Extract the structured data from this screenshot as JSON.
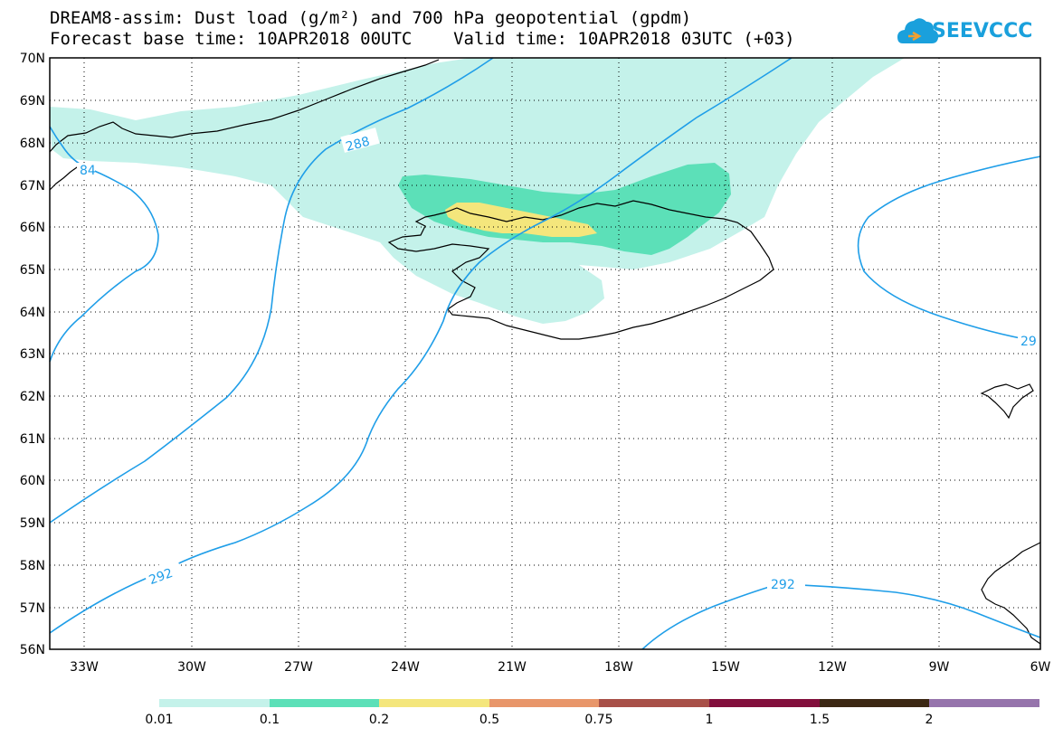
{
  "title": {
    "line1": "DREAM8-assim: Dust load (g/m²) and 700 hPa geopotential (gpdm)",
    "line2": "Forecast base time: 10APR2018 00UTC    Valid time: 10APR2018 03UTC (+03)"
  },
  "logo": {
    "text": "SEEVCCC",
    "icon": "cloud-logo-icon",
    "color": "#1aa0dc"
  },
  "map": {
    "lat_labels": [
      "70N",
      "69N",
      "68N",
      "67N",
      "66N",
      "65N",
      "64N",
      "63N",
      "62N",
      "61N",
      "60N",
      "59N",
      "58N",
      "57N",
      "56N"
    ],
    "lon_labels": [
      "33W",
      "30W",
      "27W",
      "24W",
      "21W",
      "18W",
      "15W",
      "12W",
      "9W",
      "6W"
    ],
    "contour_labels": [
      "84",
      "288",
      "292",
      "292",
      "29"
    ],
    "contour_color": "#1f9ee8",
    "coast_color": "#000000"
  },
  "colorbar": {
    "labels": [
      "0.01",
      "0.1",
      "0.2",
      "0.5",
      "0.75",
      "1",
      "1.5",
      "2"
    ],
    "colors": [
      "#c4f2ea",
      "#5ce0b8",
      "#f4e67c",
      "#e8966a",
      "#a85048",
      "#820f3c",
      "#3c2814",
      "#9674ac"
    ]
  }
}
